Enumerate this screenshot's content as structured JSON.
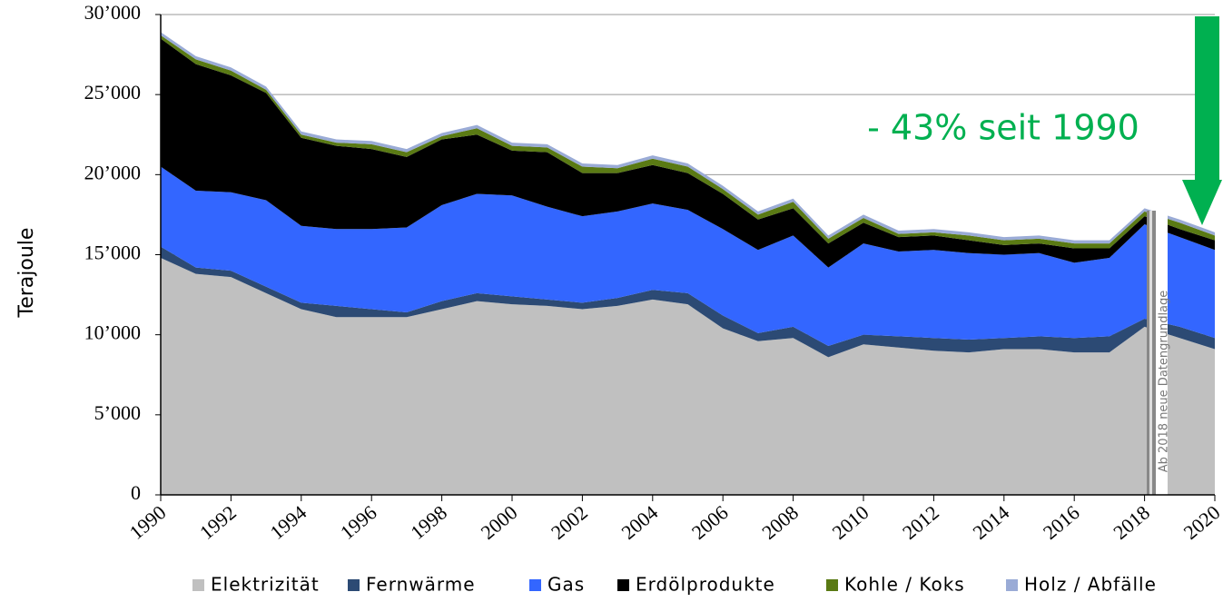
{
  "chart_data": {
    "type": "stacked_area",
    "ylabel": "Terajoule",
    "annotation": "- 43% seit 1990",
    "note": "Ab 2018 neue Datengrundlage",
    "x": [
      1990,
      1991,
      1992,
      1993,
      1994,
      1995,
      1996,
      1997,
      1998,
      1999,
      2000,
      2001,
      2002,
      2003,
      2004,
      2005,
      2006,
      2007,
      2008,
      2009,
      2010,
      2011,
      2012,
      2013,
      2014,
      2015,
      2016,
      2017,
      2018,
      2019,
      2020
    ],
    "xlim": [
      1990,
      2020
    ],
    "xticks": [
      1990,
      1992,
      1994,
      1996,
      1998,
      2000,
      2002,
      2004,
      2006,
      2008,
      2010,
      2012,
      2014,
      2016,
      2018,
      2020
    ],
    "ylim": [
      0,
      30000
    ],
    "yticks": [
      {
        "value": 0,
        "label": "0"
      },
      {
        "value": 5000,
        "label": "5’000"
      },
      {
        "value": 10000,
        "label": "10’000"
      },
      {
        "value": 15000,
        "label": "15’000"
      },
      {
        "value": 20000,
        "label": "20’000"
      },
      {
        "value": 25000,
        "label": "25’000"
      },
      {
        "value": 30000,
        "label": "30’000"
      }
    ],
    "grid": true,
    "series": [
      {
        "name": "Elektrizität",
        "color": "#c0c0c0",
        "values": [
          14800,
          13800,
          13600,
          12600,
          11600,
          11100,
          11100,
          11100,
          11600,
          12100,
          11900,
          11800,
          11600,
          11800,
          12200,
          11900,
          10400,
          9600,
          9800,
          8600,
          9400,
          9200,
          9000,
          8900,
          9100,
          9100,
          8900,
          8900,
          10500,
          9800,
          9100
        ]
      },
      {
        "name": "Fernwärme",
        "color": "#2c4a74",
        "values": [
          700,
          400,
          400,
          400,
          400,
          700,
          500,
          300,
          500,
          500,
          500,
          400,
          400,
          500,
          600,
          700,
          800,
          500,
          700,
          700,
          600,
          700,
          800,
          800,
          700,
          800,
          900,
          1000,
          500,
          700,
          700
        ]
      },
      {
        "name": "Gas",
        "color": "#3366ff",
        "values": [
          5000,
          4800,
          4900,
          5400,
          4800,
          4800,
          5000,
          5300,
          6000,
          6200,
          6300,
          5800,
          5400,
          5400,
          5400,
          5200,
          5400,
          5200,
          5700,
          4900,
          5700,
          5300,
          5500,
          5400,
          5200,
          5200,
          4700,
          4900,
          5900,
          5600,
          5500
        ]
      },
      {
        "name": "Erdölprodukte",
        "color": "#000000",
        "values": [
          8000,
          7900,
          7300,
          6700,
          5500,
          5200,
          5000,
          4400,
          4100,
          3700,
          2800,
          3400,
          2700,
          2400,
          2400,
          2300,
          2200,
          1900,
          1700,
          1500,
          1300,
          900,
          900,
          800,
          600,
          600,
          900,
          600,
          500,
          500,
          600
        ]
      },
      {
        "name": "Kohle / Koks",
        "color": "#5a7a14",
        "values": [
          200,
          300,
          300,
          200,
          200,
          200,
          300,
          300,
          200,
          400,
          300,
          300,
          400,
          300,
          400,
          400,
          300,
          300,
          400,
          300,
          300,
          200,
          200,
          300,
          300,
          300,
          300,
          300,
          300,
          400,
          300
        ]
      },
      {
        "name": "Holz / Abfälle",
        "color": "#9aabd6",
        "values": [
          200,
          200,
          200,
          200,
          200,
          200,
          200,
          200,
          200,
          200,
          200,
          200,
          200,
          200,
          200,
          200,
          200,
          200,
          200,
          200,
          200,
          200,
          200,
          200,
          200,
          200,
          200,
          200,
          200,
          200,
          200
        ]
      }
    ]
  }
}
